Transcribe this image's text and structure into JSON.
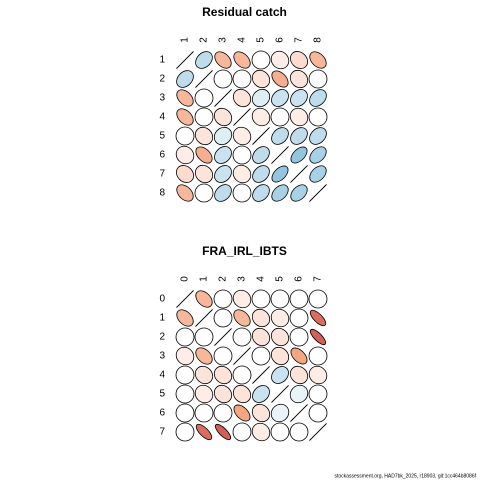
{
  "chart_data": [
    {
      "type": "corrplot",
      "title": "Residual catch",
      "categories": [
        "1",
        "2",
        "3",
        "4",
        "5",
        "6",
        "7",
        "8"
      ],
      "palette": [
        "#B2182B",
        "#F4A582",
        "#FFFFFF",
        "#92C5DE",
        "#2166AC"
      ],
      "matrix": [
        [
          1,
          0.3,
          -0.4,
          -0.4,
          0,
          -0.1,
          -0.2,
          -0.4
        ],
        [
          0.3,
          1,
          0,
          0,
          -0.15,
          -0.45,
          -0.15,
          0
        ],
        [
          -0.4,
          0,
          1,
          -0.15,
          0.15,
          0.25,
          0.25,
          0.3
        ],
        [
          -0.4,
          0,
          -0.15,
          1,
          -0.1,
          0,
          -0.1,
          0
        ],
        [
          0,
          -0.15,
          0.15,
          -0.1,
          1,
          0.3,
          0.3,
          0.3
        ],
        [
          -0.1,
          -0.45,
          0.25,
          0,
          0.3,
          1,
          0.5,
          0.4
        ],
        [
          -0.2,
          -0.15,
          0.25,
          -0.1,
          0.3,
          0.5,
          1,
          0.4
        ],
        [
          -0.4,
          0,
          0.3,
          0,
          0.3,
          0.4,
          0.4,
          1
        ]
      ]
    },
    {
      "type": "corrplot",
      "title": "FRA_IRL_IBTS",
      "categories": [
        "0",
        "1",
        "2",
        "3",
        "4",
        "5",
        "6",
        "7"
      ],
      "palette": [
        "#B2182B",
        "#F4A582",
        "#FFFFFF",
        "#92C5DE",
        "#2166AC"
      ],
      "matrix": [
        [
          1,
          -0.4,
          0,
          -0.1,
          0,
          0,
          0,
          0
        ],
        [
          -0.4,
          1,
          0,
          -0.4,
          -0.15,
          -0.1,
          0,
          -0.7
        ],
        [
          0,
          0,
          1,
          0,
          -0.15,
          -0.15,
          0,
          -0.75
        ],
        [
          -0.1,
          -0.4,
          0,
          1,
          0,
          -0.15,
          -0.5,
          0
        ],
        [
          0,
          -0.15,
          -0.15,
          0,
          1,
          0.25,
          -0.15,
          -0.1
        ],
        [
          0,
          -0.1,
          -0.15,
          -0.15,
          0.25,
          1,
          0.1,
          0
        ],
        [
          0,
          0,
          0,
          -0.5,
          -0.15,
          0.1,
          1,
          0
        ],
        [
          0,
          -0.7,
          -0.75,
          0,
          -0.1,
          0,
          0,
          1
        ]
      ]
    }
  ],
  "footer": "stockassessment.org, HAD7bk_2025, r18903, git:1cc464b8086f"
}
